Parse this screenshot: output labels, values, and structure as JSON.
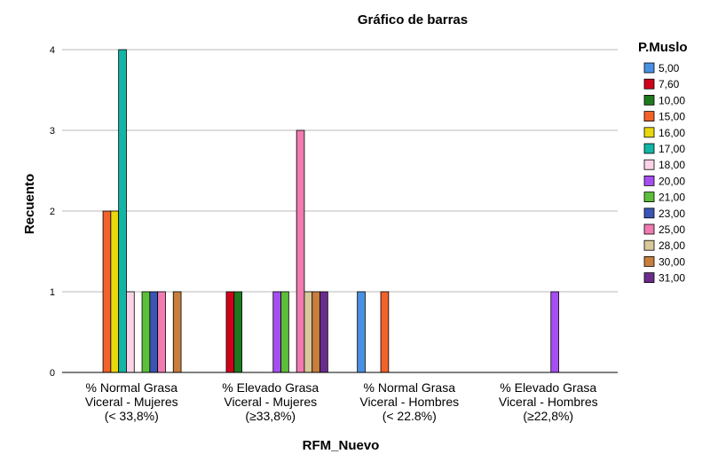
{
  "chart_data": {
    "type": "bar",
    "title": "Gráfico de barras",
    "xlabel": "RFM_Nuevo",
    "ylabel": "Recuento",
    "ylim": [
      0,
      4
    ],
    "yticks": [
      "0",
      "1",
      "2",
      "3",
      "4"
    ],
    "grid": true,
    "legend_title": "P.Muslo",
    "legend_position": "right",
    "categories": [
      [
        "% Normal Grasa",
        "Viceral - Mujeres",
        "(< 33,8%)"
      ],
      [
        "% Elevado Grasa",
        "Viceral - Mujeres",
        "(≥33,8%)"
      ],
      [
        "% Normal Grasa",
        "Viceral - Hombres",
        "(< 22.8%)"
      ],
      [
        "% Elevado Grasa",
        "Viceral - Hombres",
        "(≥22,8%)"
      ]
    ],
    "series": [
      {
        "name": "5,00",
        "color": "#4a90e2",
        "values": [
          0,
          0,
          1,
          0
        ]
      },
      {
        "name": "7,60",
        "color": "#d0021b",
        "values": [
          0,
          1,
          0,
          0
        ]
      },
      {
        "name": "10,00",
        "color": "#1e7a1e",
        "values": [
          0,
          1,
          0,
          0
        ]
      },
      {
        "name": "15,00",
        "color": "#f2622a",
        "values": [
          2,
          0,
          1,
          0
        ]
      },
      {
        "name": "16,00",
        "color": "#e8d80c",
        "values": [
          2,
          0,
          0,
          0
        ]
      },
      {
        "name": "17,00",
        "color": "#12b5a6",
        "values": [
          4,
          0,
          0,
          0
        ]
      },
      {
        "name": "18,00",
        "color": "#fbd3e6",
        "values": [
          1,
          0,
          0,
          0
        ]
      },
      {
        "name": "20,00",
        "color": "#a64ef2",
        "values": [
          0,
          1,
          0,
          1
        ]
      },
      {
        "name": "21,00",
        "color": "#5cbf3a",
        "values": [
          1,
          1,
          0,
          0
        ]
      },
      {
        "name": "23,00",
        "color": "#3a55b4",
        "values": [
          1,
          0,
          0,
          0
        ]
      },
      {
        "name": "25,00",
        "color": "#f07bb0",
        "values": [
          1,
          3,
          0,
          0
        ]
      },
      {
        "name": "28,00",
        "color": "#d8c89a",
        "values": [
          0,
          1,
          0,
          0
        ]
      },
      {
        "name": "30,00",
        "color": "#c87e3c",
        "values": [
          1,
          1,
          0,
          0
        ]
      },
      {
        "name": "31,00",
        "color": "#6a2c8c",
        "values": [
          0,
          1,
          0,
          0
        ]
      }
    ]
  }
}
